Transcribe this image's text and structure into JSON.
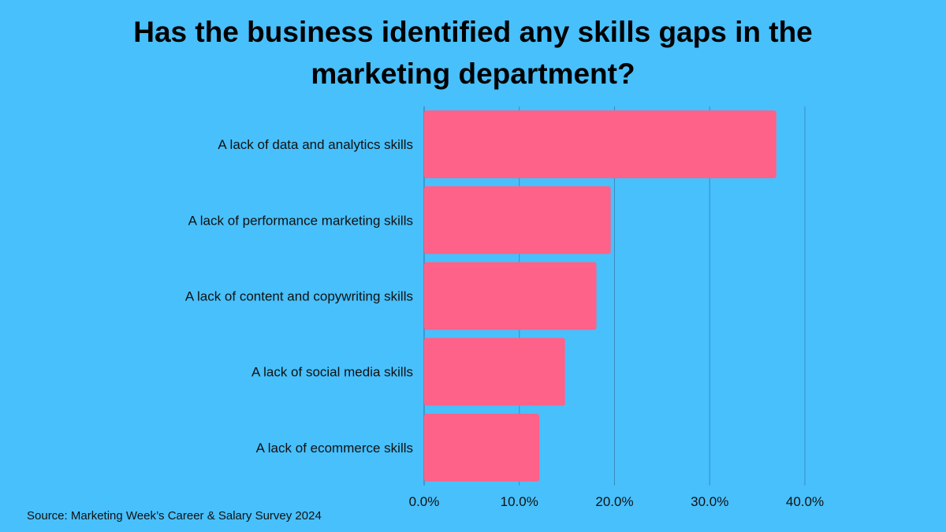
{
  "chart_data": {
    "type": "bar",
    "orientation": "horizontal",
    "title": "Has the business identified any skills gaps in the marketing department?",
    "categories": [
      "A lack of data and analytics skills",
      "A lack of performance marketing skills",
      "A lack of content and copywriting skills",
      "A lack of social media skills",
      "A lack of ecommerce skills"
    ],
    "values": [
      37.0,
      19.6,
      18.1,
      14.8,
      12.1
    ],
    "xlim": [
      0,
      40
    ],
    "x_ticks": [
      "0.0%",
      "10.0%",
      "20.0%",
      "30.0%",
      "40.0%"
    ],
    "grid": "vertical",
    "legend": "none",
    "source": "Source: Marketing Week’s Career & Salary Survey 2024"
  },
  "colors": {
    "background": "#48c0fc",
    "bar": "#ff6289",
    "gridline": "#3a8cc0"
  }
}
